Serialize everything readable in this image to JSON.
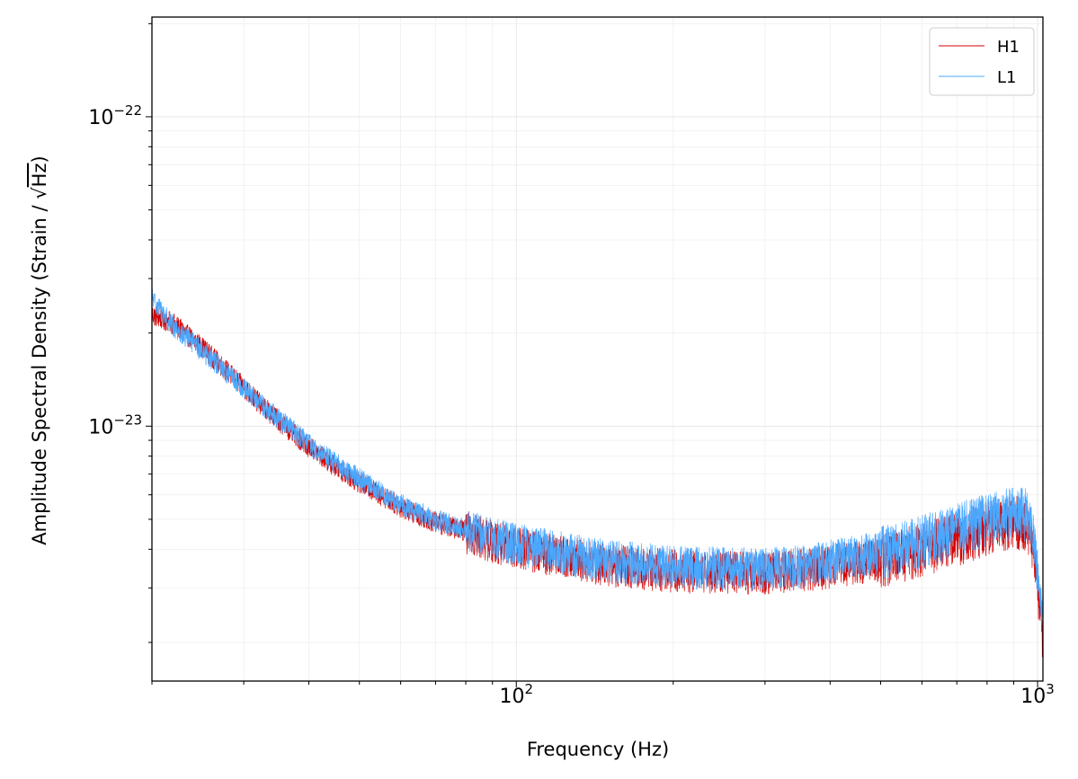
{
  "chart_data": {
    "type": "line",
    "xlabel": "Frequency (Hz)",
    "ylabel_prefix": "Amplitude Spectral Density (Strain / ",
    "ylabel_radicand": "Hz",
    "ylabel_suffix": ")",
    "x_scale": "log",
    "y_scale": "log",
    "xlim": [
      20,
      1024
    ],
    "ylim": [
      1.5e-24,
      2.1e-22
    ],
    "x_ticks": [
      {
        "value": 100,
        "base": "10",
        "exp": "2"
      },
      {
        "value": 1000,
        "base": "10",
        "exp": "3"
      }
    ],
    "y_ticks": [
      {
        "value": 1e-23,
        "base": "10",
        "exp": "−23"
      },
      {
        "value": 1e-22,
        "base": "10",
        "exp": "−22"
      }
    ],
    "grid": true,
    "legend": {
      "position": "top-right"
    },
    "series": [
      {
        "name": "H1",
        "color": "#d40000",
        "points": [
          [
            20,
            2.3e-23
          ],
          [
            22,
            2.15e-23
          ],
          [
            25,
            1.8e-23
          ],
          [
            28,
            1.5e-23
          ],
          [
            32,
            1.2e-23
          ],
          [
            36,
            1e-23
          ],
          [
            40,
            8.6e-24
          ],
          [
            45,
            7.4e-24
          ],
          [
            50,
            6.6e-24
          ],
          [
            55,
            6e-24
          ],
          [
            60,
            5.5e-24
          ],
          [
            70,
            4.9e-24
          ],
          [
            80,
            4.6e-24
          ],
          [
            90,
            4.3e-24
          ],
          [
            100,
            4.1e-24
          ],
          [
            120,
            3.85e-24
          ],
          [
            150,
            3.6e-24
          ],
          [
            200,
            3.45e-24
          ],
          [
            250,
            3.4e-24
          ],
          [
            300,
            3.4e-24
          ],
          [
            350,
            3.45e-24
          ],
          [
            400,
            3.55e-24
          ],
          [
            500,
            3.75e-24
          ],
          [
            600,
            4.05e-24
          ],
          [
            700,
            4.4e-24
          ],
          [
            800,
            4.75e-24
          ],
          [
            900,
            5e-24
          ],
          [
            950,
            4.9e-24
          ],
          [
            980,
            4.2e-24
          ],
          [
            1000,
            3.2e-24
          ],
          [
            1024,
            2.1e-24
          ]
        ]
      },
      {
        "name": "L1",
        "color": "#4aa8ff",
        "points": [
          [
            20,
            2.6e-23
          ],
          [
            22,
            2.1e-23
          ],
          [
            25,
            1.75e-23
          ],
          [
            28,
            1.48e-23
          ],
          [
            32,
            1.2e-23
          ],
          [
            36,
            1.02e-23
          ],
          [
            40,
            8.8e-24
          ],
          [
            45,
            7.6e-24
          ],
          [
            50,
            6.8e-24
          ],
          [
            55,
            6.1e-24
          ],
          [
            60,
            5.6e-24
          ],
          [
            70,
            5e-24
          ],
          [
            80,
            4.65e-24
          ],
          [
            90,
            4.4e-24
          ],
          [
            100,
            4.2e-24
          ],
          [
            120,
            3.95e-24
          ],
          [
            150,
            3.7e-24
          ],
          [
            200,
            3.55e-24
          ],
          [
            250,
            3.5e-24
          ],
          [
            300,
            3.5e-24
          ],
          [
            350,
            3.55e-24
          ],
          [
            400,
            3.7e-24
          ],
          [
            500,
            3.95e-24
          ],
          [
            600,
            4.3e-24
          ],
          [
            700,
            4.7e-24
          ],
          [
            800,
            5.05e-24
          ],
          [
            900,
            5.3e-24
          ],
          [
            950,
            5.25e-24
          ],
          [
            980,
            4.5e-24
          ],
          [
            1000,
            3.4e-24
          ],
          [
            1024,
            2.3e-24
          ]
        ]
      }
    ]
  }
}
